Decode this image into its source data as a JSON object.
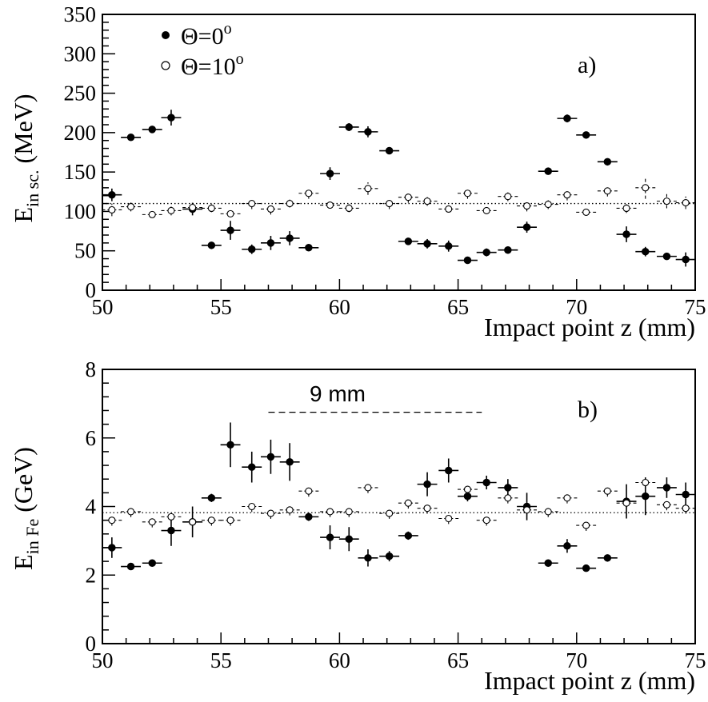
{
  "chart_data": [
    {
      "type": "scatter",
      "panel_label": "a)",
      "xlabel": "Impact point z (mm)",
      "ylabel": "E",
      "ylabel_sub": "in sc.",
      "ylabel_unit": "(MeV)",
      "xlim": [
        50,
        75
      ],
      "ylim": [
        0,
        350
      ],
      "xticks": [
        50,
        55,
        60,
        65,
        70,
        75
      ],
      "yticks": [
        0,
        50,
        100,
        150,
        200,
        250,
        300,
        350
      ],
      "reference_line": 110,
      "legend_position": "top-left",
      "series": [
        {
          "name": "Θ=0°",
          "marker": "filled-circle",
          "x": [
            50.4,
            51.2,
            52.1,
            52.9,
            53.8,
            54.6,
            55.4,
            56.3,
            57.1,
            57.9,
            58.7,
            59.6,
            60.4,
            61.2,
            62.1,
            62.9,
            63.7,
            64.6,
            65.4,
            66.2,
            67.1,
            67.9,
            68.8,
            69.6,
            70.4,
            71.3,
            72.1,
            72.9,
            73.8,
            74.6
          ],
          "y": [
            121,
            194,
            204,
            219,
            103,
            57,
            76,
            52,
            60,
            66,
            54,
            148,
            207,
            201,
            177,
            62,
            59,
            56,
            38,
            48,
            51,
            80,
            151,
            218,
            197,
            163,
            71,
            49,
            43,
            39
          ],
          "yerr": [
            8,
            2,
            3,
            10,
            8,
            1,
            12,
            6,
            9,
            9,
            1,
            8,
            5,
            7,
            1,
            1,
            6,
            7,
            1,
            5,
            2,
            7,
            4,
            5,
            1,
            4,
            10,
            6,
            4,
            9
          ]
        },
        {
          "name": "Θ=10°",
          "marker": "open-circle",
          "x": [
            50.4,
            51.2,
            52.1,
            52.9,
            53.8,
            54.6,
            55.4,
            56.3,
            57.1,
            57.9,
            58.7,
            59.6,
            60.4,
            61.2,
            62.1,
            62.9,
            63.7,
            64.6,
            65.4,
            66.2,
            67.1,
            67.9,
            68.8,
            69.6,
            70.4,
            71.3,
            72.1,
            72.9,
            73.8,
            74.6
          ],
          "y": [
            102,
            106,
            96,
            101,
            105,
            104,
            97,
            110,
            103,
            110,
            123,
            108,
            104,
            129,
            110,
            118,
            113,
            103,
            123,
            101,
            119,
            107,
            109,
            121,
            99,
            126,
            104,
            130,
            113,
            111
          ],
          "yerr": [
            8,
            6,
            4,
            6,
            6,
            5,
            4,
            7,
            7,
            5,
            7,
            4,
            5,
            8,
            7,
            7,
            6,
            4,
            7,
            4,
            6,
            7,
            6,
            7,
            4,
            7,
            6,
            14,
            9,
            8
          ]
        }
      ],
      "legend": [
        "Θ=0",
        "Θ=10"
      ],
      "legend_sup": "o"
    },
    {
      "type": "scatter",
      "panel_label": "b)",
      "xlabel": "Impact point z (mm)",
      "ylabel": "E",
      "ylabel_sub": "in Fe",
      "ylabel_unit": "(GeV)",
      "xlim": [
        50,
        75
      ],
      "ylim": [
        0,
        8
      ],
      "xticks": [
        50,
        55,
        60,
        65,
        70,
        75
      ],
      "yticks": [
        0,
        2,
        4,
        6,
        8
      ],
      "reference_line": 3.82,
      "annotation": {
        "text": "9 mm",
        "x_range": [
          57,
          66
        ],
        "y": 6.75
      },
      "series": [
        {
          "name": "Θ=0°",
          "marker": "filled-circle",
          "x": [
            50.4,
            51.2,
            52.1,
            52.9,
            53.8,
            54.6,
            55.4,
            56.3,
            57.1,
            57.9,
            58.7,
            59.6,
            60.4,
            61.2,
            62.1,
            62.9,
            63.7,
            64.6,
            65.4,
            66.2,
            67.1,
            67.9,
            68.8,
            69.6,
            70.4,
            71.3,
            72.1,
            72.9,
            73.8,
            74.6
          ],
          "y": [
            2.8,
            2.25,
            2.35,
            3.3,
            3.55,
            4.25,
            5.8,
            5.15,
            5.45,
            5.3,
            3.7,
            3.1,
            3.05,
            2.5,
            2.55,
            3.15,
            4.65,
            5.05,
            4.3,
            4.7,
            4.55,
            4.0,
            2.35,
            2.85,
            2.2,
            2.5,
            4.15,
            4.3,
            4.55,
            4.35
          ],
          "yerr": [
            0.3,
            0.05,
            0.1,
            0.45,
            0.45,
            0.12,
            0.65,
            0.45,
            0.5,
            0.55,
            0.12,
            0.35,
            0.35,
            0.25,
            0.15,
            0.12,
            0.35,
            0.35,
            0.15,
            0.2,
            0.25,
            0.4,
            0.1,
            0.2,
            0.05,
            0.1,
            0.5,
            0.55,
            0.3,
            0.35
          ]
        },
        {
          "name": "Θ=10°",
          "marker": "open-circle",
          "x": [
            50.4,
            51.2,
            52.1,
            52.9,
            53.8,
            54.6,
            55.4,
            56.3,
            57.1,
            57.9,
            58.7,
            59.6,
            60.4,
            61.2,
            62.1,
            62.9,
            63.7,
            64.6,
            65.4,
            66.2,
            67.1,
            67.9,
            68.8,
            69.6,
            70.4,
            71.3,
            72.1,
            72.9,
            73.8,
            74.6
          ],
          "y": [
            3.6,
            3.85,
            3.55,
            3.7,
            3.55,
            3.6,
            3.6,
            4.0,
            3.8,
            3.9,
            4.45,
            3.85,
            3.85,
            4.55,
            3.8,
            4.1,
            3.95,
            3.65,
            4.5,
            3.6,
            4.25,
            3.9,
            3.85,
            4.25,
            3.45,
            4.45,
            4.1,
            4.7,
            4.05,
            3.95
          ]
        }
      ]
    }
  ],
  "colors": {
    "ink": "#000000",
    "background": "#ffffff"
  }
}
